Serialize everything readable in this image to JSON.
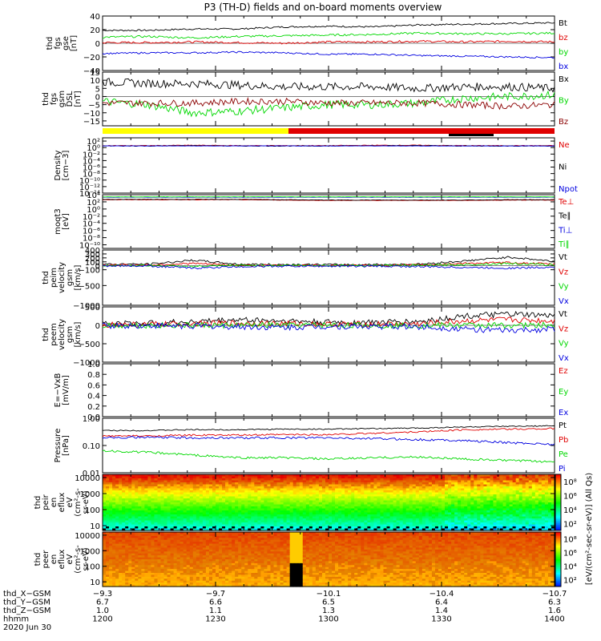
{
  "title": "P3 (TH-D) fields and on-board moments overview",
  "colors": {
    "black": "#000000",
    "red": "#e00000",
    "green": "#00d800",
    "blue": "#0000e0",
    "darkred": "#8b0000",
    "yellow": "#ffff00"
  },
  "chart_data": [
    {
      "type": "line",
      "id": "fgs_gse",
      "ylabel": [
        "thd",
        "fgs",
        "gse",
        "[nT]"
      ],
      "ylim": [
        -40,
        40
      ],
      "yticks": [
        {
          "v": 40,
          "t": "40"
        },
        {
          "v": 20,
          "t": "20"
        },
        {
          "v": 0,
          "t": "0"
        },
        {
          "v": -20,
          "t": "−20"
        },
        {
          "v": -40,
          "t": "−40"
        }
      ],
      "series": [
        {
          "name": "Bt",
          "color": "black",
          "level": [
            19,
            19,
            21,
            21,
            24,
            25,
            24,
            27,
            28,
            29,
            30
          ],
          "noise": 1.2
        },
        {
          "name": "bz",
          "color": "red",
          "level": [
            1,
            1,
            2,
            1,
            0,
            2,
            2,
            3,
            2,
            3,
            2
          ],
          "noise": 1.5
        },
        {
          "name": "by",
          "color": "green",
          "level": [
            9,
            10,
            8,
            10,
            11,
            12,
            13,
            15,
            14,
            14,
            15
          ],
          "noise": 1.5
        },
        {
          "name": "bx",
          "color": "blue",
          "level": [
            -15,
            -14,
            -14,
            -13,
            -14,
            -16,
            -16,
            -18,
            -19,
            -20,
            -21
          ],
          "noise": 1.2
        }
      ]
    },
    {
      "type": "line",
      "id": "fgs_gsm",
      "ylabel": [
        "thd",
        "fgs",
        "gsm",
        "DSL",
        "[nT]"
      ],
      "ylim": [
        -18,
        15
      ],
      "yticks": [
        {
          "v": 15,
          "t": "15"
        },
        {
          "v": 10,
          "t": "10"
        },
        {
          "v": 5,
          "t": "5"
        },
        {
          "v": 0,
          "t": "0"
        },
        {
          "v": -5,
          "t": "−5"
        },
        {
          "v": -10,
          "t": "−10"
        },
        {
          "v": -15,
          "t": "−15"
        }
      ],
      "series": [
        {
          "name": "Bx",
          "color": "black",
          "level": [
            9,
            8,
            8,
            7,
            6,
            6,
            6,
            5,
            6,
            6,
            5
          ],
          "noise": 2.5
        },
        {
          "name": "By",
          "color": "green",
          "level": [
            -3,
            -5,
            -10,
            -9,
            -7,
            -5,
            -5,
            -4,
            -1,
            0,
            1
          ],
          "noise": 2.5
        },
        {
          "name": "Bz",
          "color": "darkred",
          "level": [
            -4,
            -4,
            -4,
            -3,
            -3,
            -4,
            -4,
            -4,
            -5,
            -6,
            -5
          ],
          "noise": 2.0
        }
      ]
    },
    {
      "type": "line",
      "id": "density",
      "ylabel": [
        "Density",
        "[cm−3]"
      ],
      "ylog": true,
      "ylim": [
        -14,
        3
      ],
      "yticks": [
        {
          "v": 2,
          "t": "10²"
        },
        {
          "v": 0,
          "t": "10⁰"
        },
        {
          "v": -2,
          "t": "10⁻²"
        },
        {
          "v": -4,
          "t": "10⁻⁴"
        },
        {
          "v": -6,
          "t": "10⁻⁶"
        },
        {
          "v": -8,
          "t": "10⁻⁸"
        },
        {
          "v": -10,
          "t": "10⁻¹⁰"
        },
        {
          "v": -12,
          "t": "10⁻¹²"
        },
        {
          "v": -14,
          "t": "10⁻¹⁴"
        }
      ],
      "series": [
        {
          "name": "Ne",
          "color": "red",
          "level": [
            0.6,
            0.6,
            0.7,
            0.6,
            0.6,
            0.6,
            0.7,
            0.7,
            0.6,
            0.6,
            0.6
          ],
          "noise": 0.1
        },
        {
          "name": "Ni",
          "color": "black",
          "level": [
            0.5,
            0.5,
            0.6,
            0.5,
            0.5,
            0.5,
            0.6,
            0.6,
            0.5,
            0.5,
            0.5
          ],
          "noise": 0.1
        },
        {
          "name": "Npot",
          "color": "blue",
          "level": [
            0.5,
            0.5,
            0.5,
            0.5,
            0.5,
            0.5,
            0.5,
            0.5,
            0.5,
            0.5,
            0.5
          ],
          "noise": 0.05
        }
      ]
    },
    {
      "type": "line",
      "id": "temperature",
      "ylabel": [
        "moqt3",
        "[eV]"
      ],
      "ylog": true,
      "ylim": [
        -11,
        4
      ],
      "yticks": [
        {
          "v": 4,
          "t": "10⁴"
        },
        {
          "v": 2,
          "t": "10²"
        },
        {
          "v": 0,
          "t": "10⁰"
        },
        {
          "v": -2,
          "t": "10⁻²"
        },
        {
          "v": -4,
          "t": "10⁻⁴"
        },
        {
          "v": -6,
          "t": "10⁻⁶"
        },
        {
          "v": -8,
          "t": "10⁻⁸"
        },
        {
          "v": -10,
          "t": "10⁻¹⁰"
        }
      ],
      "series": [
        {
          "name": "Te⊥",
          "color": "red",
          "level": [
            2.6,
            2.6,
            2.6,
            2.6,
            2.5,
            2.4,
            2.4,
            2.4,
            2.4,
            2.5,
            2.5
          ],
          "noise": 0.05
        },
        {
          "name": "Te∥",
          "color": "black",
          "level": [
            2.7,
            2.7,
            2.7,
            2.7,
            2.6,
            2.5,
            2.5,
            2.5,
            2.5,
            2.6,
            2.6
          ],
          "noise": 0.05
        },
        {
          "name": "Ti⊥",
          "color": "blue",
          "level": [
            3.3,
            3.3,
            3.3,
            3.3,
            3.3,
            3.3,
            3.3,
            3.3,
            3.3,
            3.3,
            3.3
          ],
          "noise": 0.03
        },
        {
          "name": "Ti∥",
          "color": "green",
          "level": [
            3.4,
            3.4,
            3.4,
            3.4,
            3.4,
            3.4,
            3.4,
            3.4,
            3.4,
            3.4,
            3.4
          ],
          "noise": 0.03
        }
      ]
    },
    {
      "type": "line",
      "id": "peim_velocity",
      "ylabel": [
        "thd",
        "peim",
        "velocity",
        "gsm",
        "[km/s]"
      ],
      "ylim": [
        -1000,
        400
      ],
      "yticks": [
        {
          "v": 400,
          "t": "400"
        },
        {
          "v": 300,
          "t": "300"
        },
        {
          "v": 200,
          "t": "200"
        },
        {
          "v": 100,
          "t": "100"
        },
        {
          "v": 0,
          "t": "0"
        },
        {
          "v": -100,
          "t": "−100"
        },
        {
          "v": -500,
          "t": "−500"
        },
        {
          "v": -1000,
          "t": "−1000"
        }
      ],
      "series": [
        {
          "name": "Vt",
          "color": "black",
          "level": [
            40,
            40,
            140,
            40,
            30,
            30,
            30,
            40,
            120,
            220,
            110
          ],
          "noise": 25
        },
        {
          "name": "Vz",
          "color": "red",
          "level": [
            20,
            20,
            60,
            10,
            10,
            10,
            10,
            20,
            60,
            80,
            40
          ],
          "noise": 25
        },
        {
          "name": "Vy",
          "color": "green",
          "level": [
            10,
            10,
            -20,
            10,
            10,
            10,
            10,
            10,
            30,
            60,
            20
          ],
          "noise": 25
        },
        {
          "name": "Vx",
          "color": "blue",
          "level": [
            0,
            0,
            -60,
            -20,
            -10,
            -10,
            -10,
            -20,
            -40,
            -60,
            -30
          ],
          "noise": 25
        }
      ]
    },
    {
      "type": "line",
      "id": "peem_velocity",
      "ylabel": [
        "thd",
        "peem",
        "velocity",
        "gsm",
        "[km/s]"
      ],
      "ylim": [
        -1000,
        500
      ],
      "yticks": [
        {
          "v": 500,
          "t": "500"
        },
        {
          "v": 0,
          "t": "0"
        },
        {
          "v": -500,
          "t": "−500"
        },
        {
          "v": -1000,
          "t": "−1000"
        }
      ],
      "series": [
        {
          "name": "Vt",
          "color": "black",
          "level": [
            50,
            50,
            100,
            150,
            120,
            80,
            80,
            100,
            250,
            300,
            250
          ],
          "noise": 80
        },
        {
          "name": "Vz",
          "color": "red",
          "level": [
            20,
            20,
            40,
            60,
            50,
            30,
            30,
            40,
            120,
            150,
            120
          ],
          "noise": 80
        },
        {
          "name": "Vy",
          "color": "green",
          "level": [
            0,
            0,
            0,
            0,
            0,
            0,
            0,
            0,
            0,
            0,
            0
          ],
          "noise": 80
        },
        {
          "name": "Vx",
          "color": "blue",
          "level": [
            -10,
            -10,
            -20,
            -40,
            -60,
            -30,
            -30,
            -40,
            -100,
            -150,
            -100
          ],
          "noise": 80
        }
      ]
    },
    {
      "type": "line",
      "id": "efield",
      "ylabel": [
        "E=−VxB",
        "[mV/m]"
      ],
      "ylim": [
        0,
        1
      ],
      "yticks": [
        {
          "v": 1,
          "t": "1.0"
        },
        {
          "v": 0.8,
          "t": "0.8"
        },
        {
          "v": 0.6,
          "t": "0.6"
        },
        {
          "v": 0.4,
          "t": "0.4"
        },
        {
          "v": 0.2,
          "t": "0.2"
        },
        {
          "v": 0,
          "t": "0.0"
        }
      ],
      "series": [
        {
          "name": "Ez",
          "color": "red"
        },
        {
          "name": "Ey",
          "color": "green"
        },
        {
          "name": "Ex",
          "color": "blue"
        }
      ]
    },
    {
      "type": "line",
      "id": "pressure",
      "ylabel": [
        "Pressure",
        "[nPa]"
      ],
      "ylog": true,
      "ylim": [
        -2,
        0
      ],
      "yticks": [
        {
          "v": 0,
          "t": "1.00"
        },
        {
          "v": -1,
          "t": "0.10"
        },
        {
          "v": -2,
          "t": "0.01"
        }
      ],
      "series": [
        {
          "name": "Pt",
          "color": "black",
          "level": [
            -0.45,
            -0.45,
            -0.42,
            -0.42,
            -0.4,
            -0.4,
            -0.38,
            -0.36,
            -0.32,
            -0.3,
            -0.28
          ],
          "noise": 0.02
        },
        {
          "name": "Pb",
          "color": "red",
          "level": [
            -0.65,
            -0.65,
            -0.62,
            -0.62,
            -0.6,
            -0.6,
            -0.55,
            -0.5,
            -0.42,
            -0.4,
            -0.38
          ],
          "noise": 0.03
        },
        {
          "name": "Pe",
          "color": "green",
          "level": [
            -1.2,
            -1.25,
            -1.35,
            -1.45,
            -1.45,
            -1.5,
            -1.45,
            -1.42,
            -1.5,
            -1.55,
            -1.6
          ],
          "noise": 0.04
        },
        {
          "name": "Pi",
          "color": "blue",
          "level": [
            -0.7,
            -0.7,
            -0.72,
            -0.72,
            -0.72,
            -0.72,
            -0.75,
            -0.78,
            -0.82,
            -0.9,
            -0.95
          ],
          "noise": 0.04
        }
      ]
    },
    {
      "type": "heatmap",
      "id": "peir_eflux",
      "ylabel": [
        "thd",
        "peir",
        "en",
        "eflux",
        "eV",
        "(cm²-s-",
        "sr-eV)"
      ],
      "ylog": true,
      "ylim": [
        0.7,
        4.2
      ],
      "yticks": [
        {
          "v": 4,
          "t": "10000"
        },
        {
          "v": 3,
          "t": "1000"
        },
        {
          "v": 2,
          "t": "100"
        },
        {
          "v": 1,
          "t": "10"
        }
      ],
      "colorbar": {
        "label": "[eV/(cm²-sec-sr-eV)] (All Qs)",
        "ticks": [
          {
            "v": 8,
            "t": "10⁸"
          },
          {
            "v": 6,
            "t": "10⁶"
          },
          {
            "v": 4,
            "t": "10⁴"
          },
          {
            "v": 2,
            "t": "10²"
          }
        ]
      }
    },
    {
      "type": "heatmap",
      "id": "peer_eflux",
      "ylabel": [
        "thd",
        "peer",
        "en",
        "eflux",
        "eV",
        "(cm²-s-",
        "sr-eV)"
      ],
      "ylog": true,
      "ylim": [
        0.7,
        4.2
      ],
      "yticks": [
        {
          "v": 4,
          "t": "10000"
        },
        {
          "v": 3,
          "t": "1000"
        },
        {
          "v": 2,
          "t": "100"
        },
        {
          "v": 1,
          "t": "10"
        }
      ],
      "colorbar": {
        "label": "[eV/(cm²-sec-sr-eV)]",
        "ticks": [
          {
            "v": 8,
            "t": "10⁸"
          },
          {
            "v": 6,
            "t": "10⁶"
          },
          {
            "v": 4,
            "t": "10⁴"
          },
          {
            "v": 2,
            "t": "10²"
          }
        ]
      }
    }
  ],
  "time_axis": {
    "rows": [
      {
        "label": "thd_X−GSM",
        "values": [
          "−9.3",
          "−9.7",
          "−10.1",
          "−10.4",
          "−10.7"
        ]
      },
      {
        "label": "thd_Y−GSM",
        "values": [
          "6.7",
          "6.6",
          "6.5",
          "6.4",
          "6.3"
        ]
      },
      {
        "label": "thd_Z−GSM",
        "values": [
          "1.0",
          "1.1",
          "1.3",
          "1.4",
          "1.6"
        ]
      },
      {
        "label": "hhmm",
        "values": [
          "1200",
          "1230",
          "1300",
          "1330",
          "1400"
        ]
      }
    ],
    "date": "2020 Jun 30"
  }
}
